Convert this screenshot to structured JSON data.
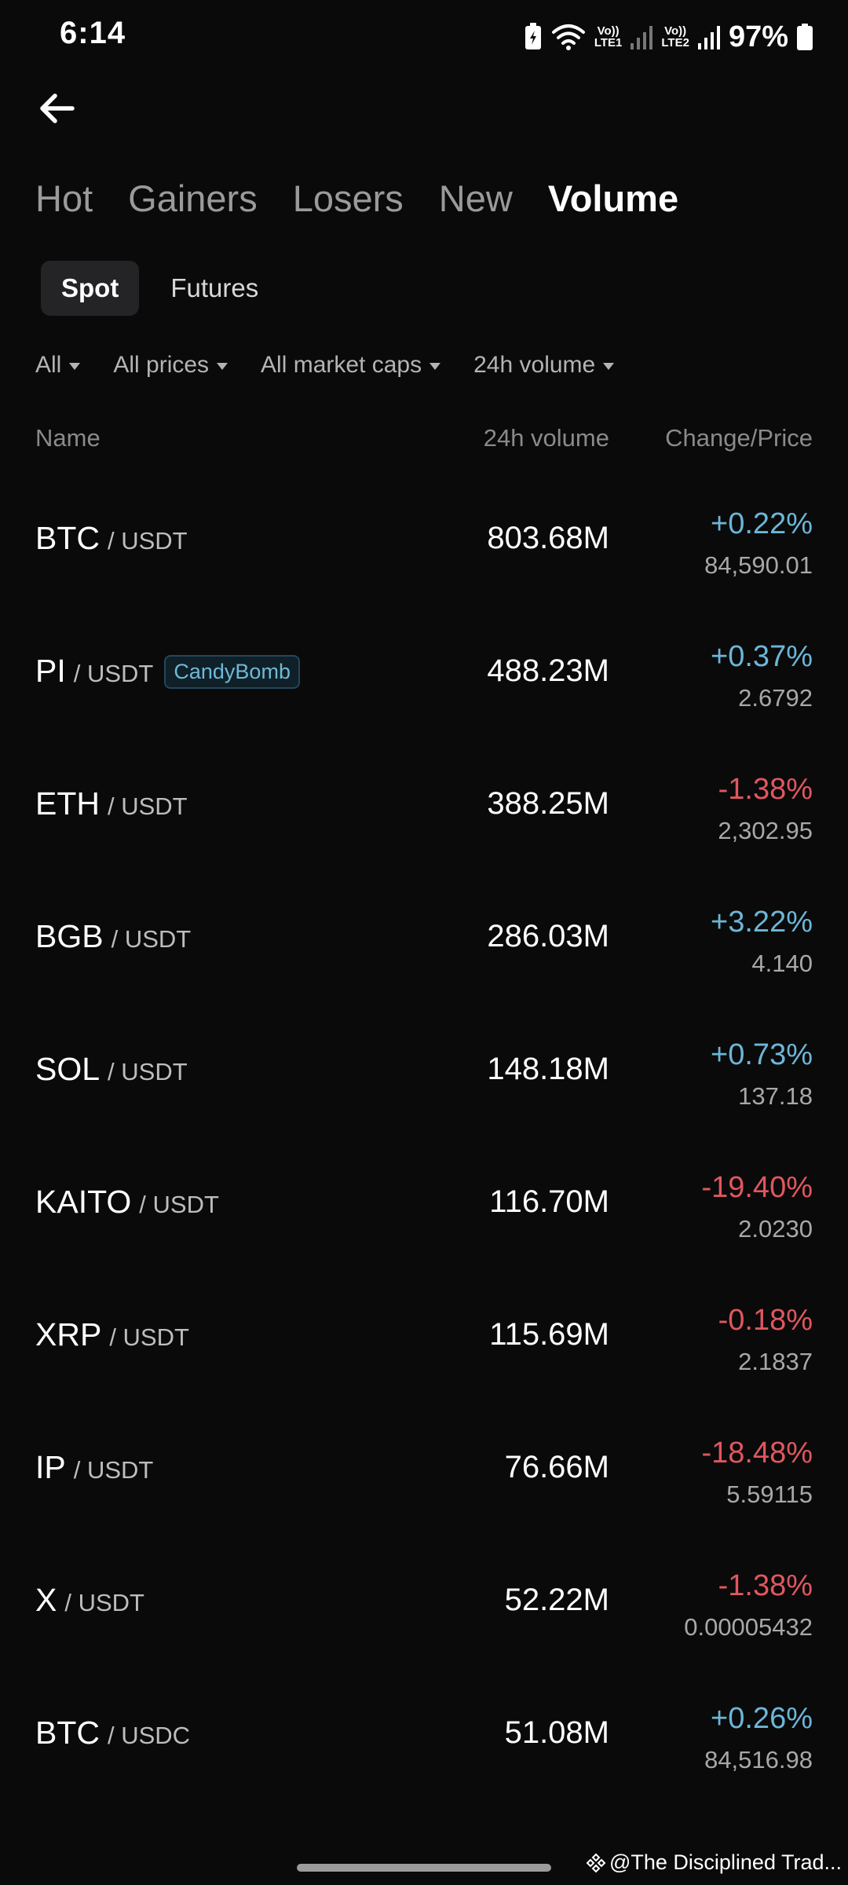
{
  "status": {
    "time": "6:14",
    "sim1": "Vo)) LTE1",
    "sim1_top": "Vo))",
    "sim1_bottom": "LTE1",
    "sim2_top": "Vo))",
    "sim2_bottom": "LTE2",
    "battery": "97%"
  },
  "tabs": [
    {
      "label": "Hot",
      "active": false
    },
    {
      "label": "Gainers",
      "active": false
    },
    {
      "label": "Losers",
      "active": false
    },
    {
      "label": "New",
      "active": false
    },
    {
      "label": "Volume",
      "active": true
    }
  ],
  "segment": {
    "spot": "Spot",
    "futures": "Futures",
    "selected": "Spot"
  },
  "filters": {
    "all": "All",
    "prices": "All prices",
    "market_caps": "All market caps",
    "sort": "24h volume"
  },
  "columns": {
    "name": "Name",
    "volume": "24h volume",
    "change_price": "Change/Price"
  },
  "rows": [
    {
      "base": "BTC",
      "quote": "/ USDT",
      "volume": "803.68M",
      "change": "+0.22%",
      "direction": "up",
      "price": "84,590.01"
    },
    {
      "base": "PI",
      "quote": "/ USDT",
      "tag": "CandyBomb",
      "volume": "488.23M",
      "change": "+0.37%",
      "direction": "up",
      "price": "2.6792"
    },
    {
      "base": "ETH",
      "quote": "/ USDT",
      "volume": "388.25M",
      "change": "-1.38%",
      "direction": "down",
      "price": "2,302.95"
    },
    {
      "base": "BGB",
      "quote": "/ USDT",
      "volume": "286.03M",
      "change": "+3.22%",
      "direction": "up",
      "price": "4.140"
    },
    {
      "base": "SOL",
      "quote": "/ USDT",
      "volume": "148.18M",
      "change": "+0.73%",
      "direction": "up",
      "price": "137.18"
    },
    {
      "base": "KAITO",
      "quote": "/ USDT",
      "volume": "116.70M",
      "change": "-19.40%",
      "direction": "down",
      "price": "2.0230"
    },
    {
      "base": "XRP",
      "quote": "/ USDT",
      "volume": "115.69M",
      "change": "-0.18%",
      "direction": "down",
      "price": "2.1837"
    },
    {
      "base": "IP",
      "quote": "/ USDT",
      "volume": "76.66M",
      "change": "-18.48%",
      "direction": "down",
      "price": "5.59115"
    },
    {
      "base": "X",
      "quote": "/ USDT",
      "volume": "52.22M",
      "change": "-1.38%",
      "direction": "down",
      "price": "0.00005432"
    },
    {
      "base": "BTC",
      "quote": "/ USDC",
      "volume": "51.08M",
      "change": "+0.26%",
      "direction": "up",
      "price": "84,516.98"
    }
  ],
  "watermark": "@The Disciplined Trad...",
  "colors": {
    "background": "#0a0a0a",
    "up": "#6cb6d8",
    "down": "#e0575f",
    "tag_text": "#6fb9d6"
  },
  "icons": {
    "back": "arrow-left-icon",
    "battery_saver": "battery-saver-icon",
    "wifi": "wifi-icon",
    "signal": "signal-icon",
    "battery": "battery-icon",
    "watermark": "binance-logo-icon"
  }
}
